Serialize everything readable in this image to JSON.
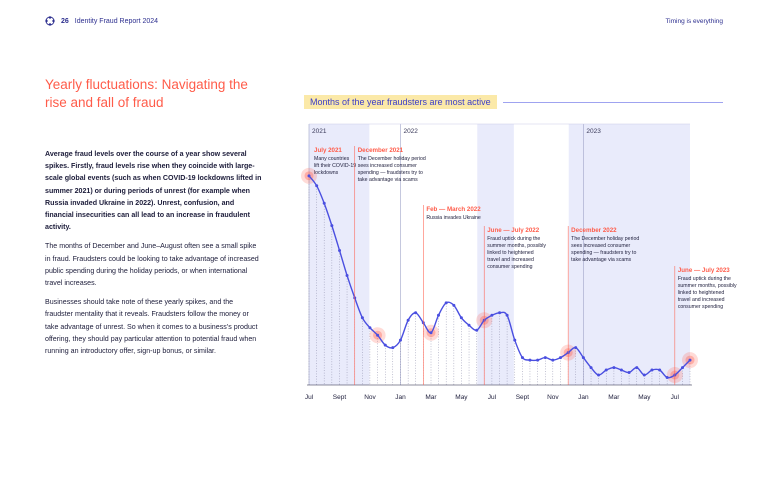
{
  "header": {
    "page_number": "26",
    "report_title": "Identity Fraud Report 2024",
    "right_text": "Timing is everything",
    "logo_icon": "globe-dots-icon"
  },
  "headline": "Yearly fluctuations: Navigating the rise and fall of fraud",
  "body": {
    "lead": "Average fraud levels over the course of a year show several spikes. Firstly, fraud levels rise when they coincide with large-scale global events (such as when COVID-19 lockdowns lifted in summer 2021) or during periods of unrest (for example when Russia invaded Ukraine in 2022). Unrest, confusion, and financial insecurities can all lead to an increase in fraudulent activity.",
    "p2": "The months of December and June–August often see a small spike in fraud. Fraudsters could be looking to take advantage of increased public spending during the holiday periods, or when international travel increases.",
    "p3": "Businesses should take note of these yearly spikes, and the fraudster mentality that it reveals. Fraudsters follow the money or take advantage of unrest. So when it comes to a business’s product offering, they should pay particular attention to potential fraud when running an introductory offer, sign-up bonus, or similar."
  },
  "colors": {
    "accent": "#ff5c4a",
    "line": "#4a4fe0",
    "band": "#e9ebfb",
    "highlight": "#fbe9a8"
  },
  "chart_data": {
    "type": "line",
    "title": "Months of the year fraudsters are most active",
    "xlabel": "",
    "ylabel": "",
    "grid": false,
    "year_labels": [
      "2021",
      "2022",
      "2023"
    ],
    "x_tick_labels": [
      "Jul",
      "Sept",
      "Nov",
      "Jan",
      "Mar",
      "May",
      "Jul",
      "Sept",
      "Nov",
      "Jan",
      "Mar",
      "May",
      "Jul"
    ],
    "x": [
      2021.5,
      2021.542,
      2021.583,
      2021.625,
      2021.667,
      2021.708,
      2021.75,
      2021.792,
      2021.833,
      2021.875,
      2021.917,
      2021.958,
      2022.0,
      2022.042,
      2022.083,
      2022.125,
      2022.167,
      2022.208,
      2022.25,
      2022.292,
      2022.333,
      2022.375,
      2022.417,
      2022.458,
      2022.5,
      2022.542,
      2022.583,
      2022.625,
      2022.667,
      2022.708,
      2022.75,
      2022.792,
      2022.833,
      2022.875,
      2022.917,
      2022.958,
      2023.0,
      2023.042,
      2023.083,
      2023.125,
      2023.167,
      2023.208,
      2023.25,
      2023.292,
      2023.333,
      2023.375,
      2023.417,
      2023.458,
      2023.5,
      2023.542,
      2023.583
    ],
    "values": [
      84,
      80,
      73,
      64,
      54,
      44,
      35,
      27,
      23,
      20,
      16,
      15,
      18,
      26,
      29,
      25,
      21,
      28,
      33,
      32,
      27,
      24,
      22,
      26,
      28,
      29,
      28,
      18,
      11,
      10,
      10,
      11,
      10,
      11,
      13,
      15,
      11,
      7,
      4,
      6,
      7,
      6,
      5,
      7,
      4,
      6,
      6,
      3,
      4,
      7,
      10
    ],
    "ylim": [
      0,
      100
    ],
    "highlight_points": [
      {
        "x": 2021.5,
        "y": 84
      },
      {
        "x": 2021.875,
        "y": 20
      },
      {
        "x": 2022.167,
        "y": 21
      },
      {
        "x": 2022.458,
        "y": 26
      },
      {
        "x": 2022.917,
        "y": 13
      },
      {
        "x": 2023.5,
        "y": 4
      },
      {
        "x": 2023.583,
        "y": 10
      }
    ],
    "bands": [
      {
        "from": 2021.5,
        "to": 2021.83
      },
      {
        "from": 2022.42,
        "to": 2022.62
      },
      {
        "from": 2022.92,
        "to": 2023.583
      }
    ],
    "annotations": [
      {
        "x": 2021.5,
        "title": "July 2021",
        "lines": [
          "Many countries",
          "lift their COVID-19",
          "lockdowns"
        ]
      },
      {
        "x": 2021.75,
        "title": "December 2021",
        "lines": [
          "The December holiday period",
          "sees increased consumer",
          "spending — fraudsters try to",
          "take advantage via scams"
        ]
      },
      {
        "x": 2022.125,
        "title": "Feb — March 2022",
        "lines": [
          "Russia invades Ukraine"
        ]
      },
      {
        "x": 2022.458,
        "title": "June — July 2022",
        "lines": [
          "Fraud uptick during the",
          "summer months, possibly",
          "linked to heightened",
          "travel and increased",
          "consumer spending"
        ]
      },
      {
        "x": 2022.917,
        "title": "December 2022",
        "lines": [
          "The December holiday period",
          "sees increased consumer",
          "spending — fraudsters try to",
          "take advantage via scams"
        ]
      },
      {
        "x": 2023.5,
        "title": "June — July 2023",
        "lines": [
          "Fraud uptick during the",
          "summer months, possibly",
          "linked to heightened",
          "travel and increased",
          "consumer spending"
        ]
      }
    ]
  }
}
